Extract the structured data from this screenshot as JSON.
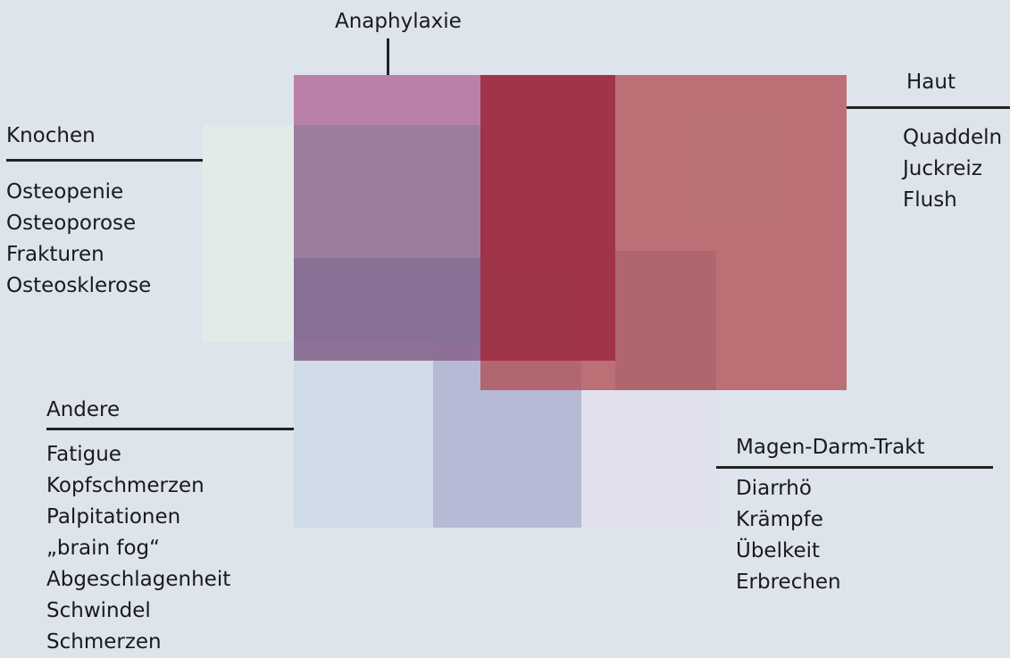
{
  "colors": {
    "background": "#dde4ec",
    "anaphylaxie": "#b77ea3",
    "haut": "#b04a4e",
    "knochen": "#e3ebe8",
    "andere": "#cfdbe7",
    "magen_darm": "#b7bbd5",
    "magen_darm_light": "#e1e0ec",
    "line": "#222222"
  },
  "diagram": {
    "anaphylaxie": {
      "title": "Anaphylaxie",
      "items": []
    },
    "haut": {
      "title": "Haut",
      "items": [
        "Quaddeln",
        "Juckreiz",
        "Flush"
      ]
    },
    "knochen": {
      "title": "Knochen",
      "items": [
        "Osteopenie",
        "Osteoporose",
        "Frakturen",
        "Osteosklerose"
      ]
    },
    "andere": {
      "title": "Andere",
      "items": [
        "Fatigue",
        "Kopfschmerzen",
        "Palpitationen",
        "„brain fog“",
        "Abgeschlagenheit",
        "Schwindel",
        "Schmerzen"
      ]
    },
    "magen_darm": {
      "title": "Magen-Darm-Trakt",
      "items": [
        "Diarrhö",
        "Krämpfe",
        "Übelkeit",
        "Erbrechen"
      ]
    }
  }
}
